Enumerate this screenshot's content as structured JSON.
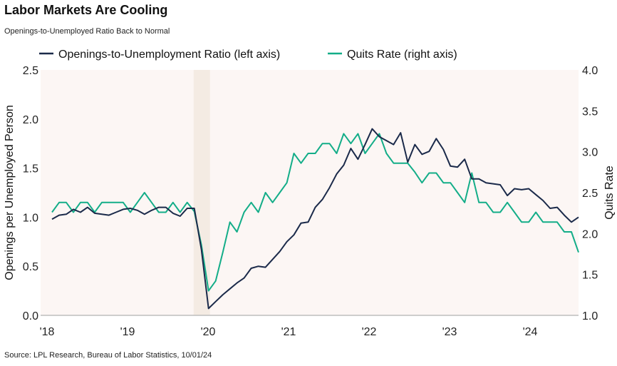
{
  "title": "Labor Markets Are Cooling",
  "subtitle": "Openings-to-Unemployed Ratio Back to Normal",
  "source": "Source: LPL Research, Bureau of Labor Statistics, 10/01/24",
  "colors": {
    "ratio": "#1b2a4a",
    "quits": "#13ad88",
    "plot_bg": "#fcf6f4",
    "shade": "#f4ebe3"
  },
  "chart_data": {
    "type": "line",
    "title": "Labor Markets Are Cooling",
    "subtitle": "Openings-to-Unemployed Ratio Back to Normal",
    "ylabel": "Openings per Unemployed Person",
    "y2label": "Quits Rate",
    "ylim": [
      0,
      2.5
    ],
    "y2lim": [
      1.0,
      4.0
    ],
    "yticks": [
      "0.0",
      "0.5",
      "1.0",
      "1.5",
      "2.0",
      "2.5"
    ],
    "y2ticks": [
      "1.0",
      "1.5",
      "2.0",
      "2.5",
      "3.0",
      "3.5",
      "4.0"
    ],
    "xticks": [
      "'18",
      "'19",
      "'20",
      "'21",
      "'22",
      "'23",
      "'24"
    ],
    "grid": false,
    "legend": "top",
    "shaded_period": [
      "2020-02",
      "2020-04"
    ],
    "x": [
      "2018-06",
      "2018-07",
      "2018-08",
      "2018-09",
      "2018-10",
      "2018-11",
      "2018-12",
      "2019-01",
      "2019-02",
      "2019-03",
      "2019-04",
      "2019-05",
      "2019-06",
      "2019-07",
      "2019-08",
      "2019-09",
      "2019-10",
      "2019-11",
      "2019-12",
      "2020-01",
      "2020-02",
      "2020-03",
      "2020-04",
      "2020-05",
      "2020-06",
      "2020-07",
      "2020-08",
      "2020-09",
      "2020-10",
      "2020-11",
      "2020-12",
      "2021-01",
      "2021-02",
      "2021-03",
      "2021-04",
      "2021-05",
      "2021-06",
      "2021-07",
      "2021-08",
      "2021-09",
      "2021-10",
      "2021-11",
      "2021-12",
      "2022-01",
      "2022-02",
      "2022-03",
      "2022-04",
      "2022-05",
      "2022-06",
      "2022-07",
      "2022-08",
      "2022-09",
      "2022-10",
      "2022-11",
      "2022-12",
      "2023-01",
      "2023-02",
      "2023-03",
      "2023-04",
      "2023-05",
      "2023-06",
      "2023-07",
      "2023-08",
      "2023-09",
      "2023-10",
      "2023-11",
      "2023-12",
      "2024-01",
      "2024-02",
      "2024-03",
      "2024-04",
      "2024-05",
      "2024-06",
      "2024-07",
      "2024-08"
    ],
    "series": [
      {
        "name": "Openings-to-Unemployment Ratio (left axis)",
        "axis": "left",
        "values": [
          0.98,
          1.02,
          1.03,
          1.08,
          1.05,
          1.1,
          1.04,
          1.03,
          1.02,
          1.05,
          1.08,
          1.09,
          1.07,
          1.03,
          1.07,
          1.1,
          1.1,
          1.04,
          1.01,
          1.09,
          1.09,
          0.67,
          0.07,
          0.14,
          0.21,
          0.27,
          0.33,
          0.38,
          0.48,
          0.5,
          0.49,
          0.57,
          0.65,
          0.75,
          0.82,
          0.94,
          0.95,
          1.1,
          1.18,
          1.3,
          1.44,
          1.53,
          1.7,
          1.59,
          1.74,
          1.9,
          1.82,
          1.78,
          1.74,
          1.86,
          1.56,
          1.74,
          1.64,
          1.67,
          1.8,
          1.69,
          1.52,
          1.51,
          1.59,
          1.39,
          1.39,
          1.35,
          1.34,
          1.33,
          1.22,
          1.29,
          1.28,
          1.29,
          1.23,
          1.17,
          1.09,
          1.1,
          1.02,
          0.95,
          1.0
        ]
      },
      {
        "name": "Quits Rate (right axis)",
        "axis": "right",
        "values": [
          2.26,
          2.38,
          2.38,
          2.26,
          2.38,
          2.38,
          2.26,
          2.38,
          2.38,
          2.38,
          2.38,
          2.26,
          2.38,
          2.5,
          2.38,
          2.26,
          2.26,
          2.38,
          2.26,
          2.38,
          2.27,
          1.86,
          1.3,
          1.42,
          1.77,
          2.14,
          2.02,
          2.26,
          2.38,
          2.26,
          2.5,
          2.38,
          2.5,
          2.62,
          2.98,
          2.86,
          2.98,
          2.98,
          3.1,
          3.1,
          2.98,
          3.22,
          3.1,
          3.22,
          2.98,
          3.1,
          3.22,
          2.98,
          2.86,
          2.86,
          2.86,
          2.75,
          2.62,
          2.74,
          2.74,
          2.62,
          2.62,
          2.5,
          2.38,
          2.74,
          2.38,
          2.38,
          2.26,
          2.26,
          2.38,
          2.26,
          2.14,
          2.14,
          2.26,
          2.14,
          2.14,
          2.14,
          2.02,
          2.02,
          1.77
        ]
      }
    ]
  }
}
